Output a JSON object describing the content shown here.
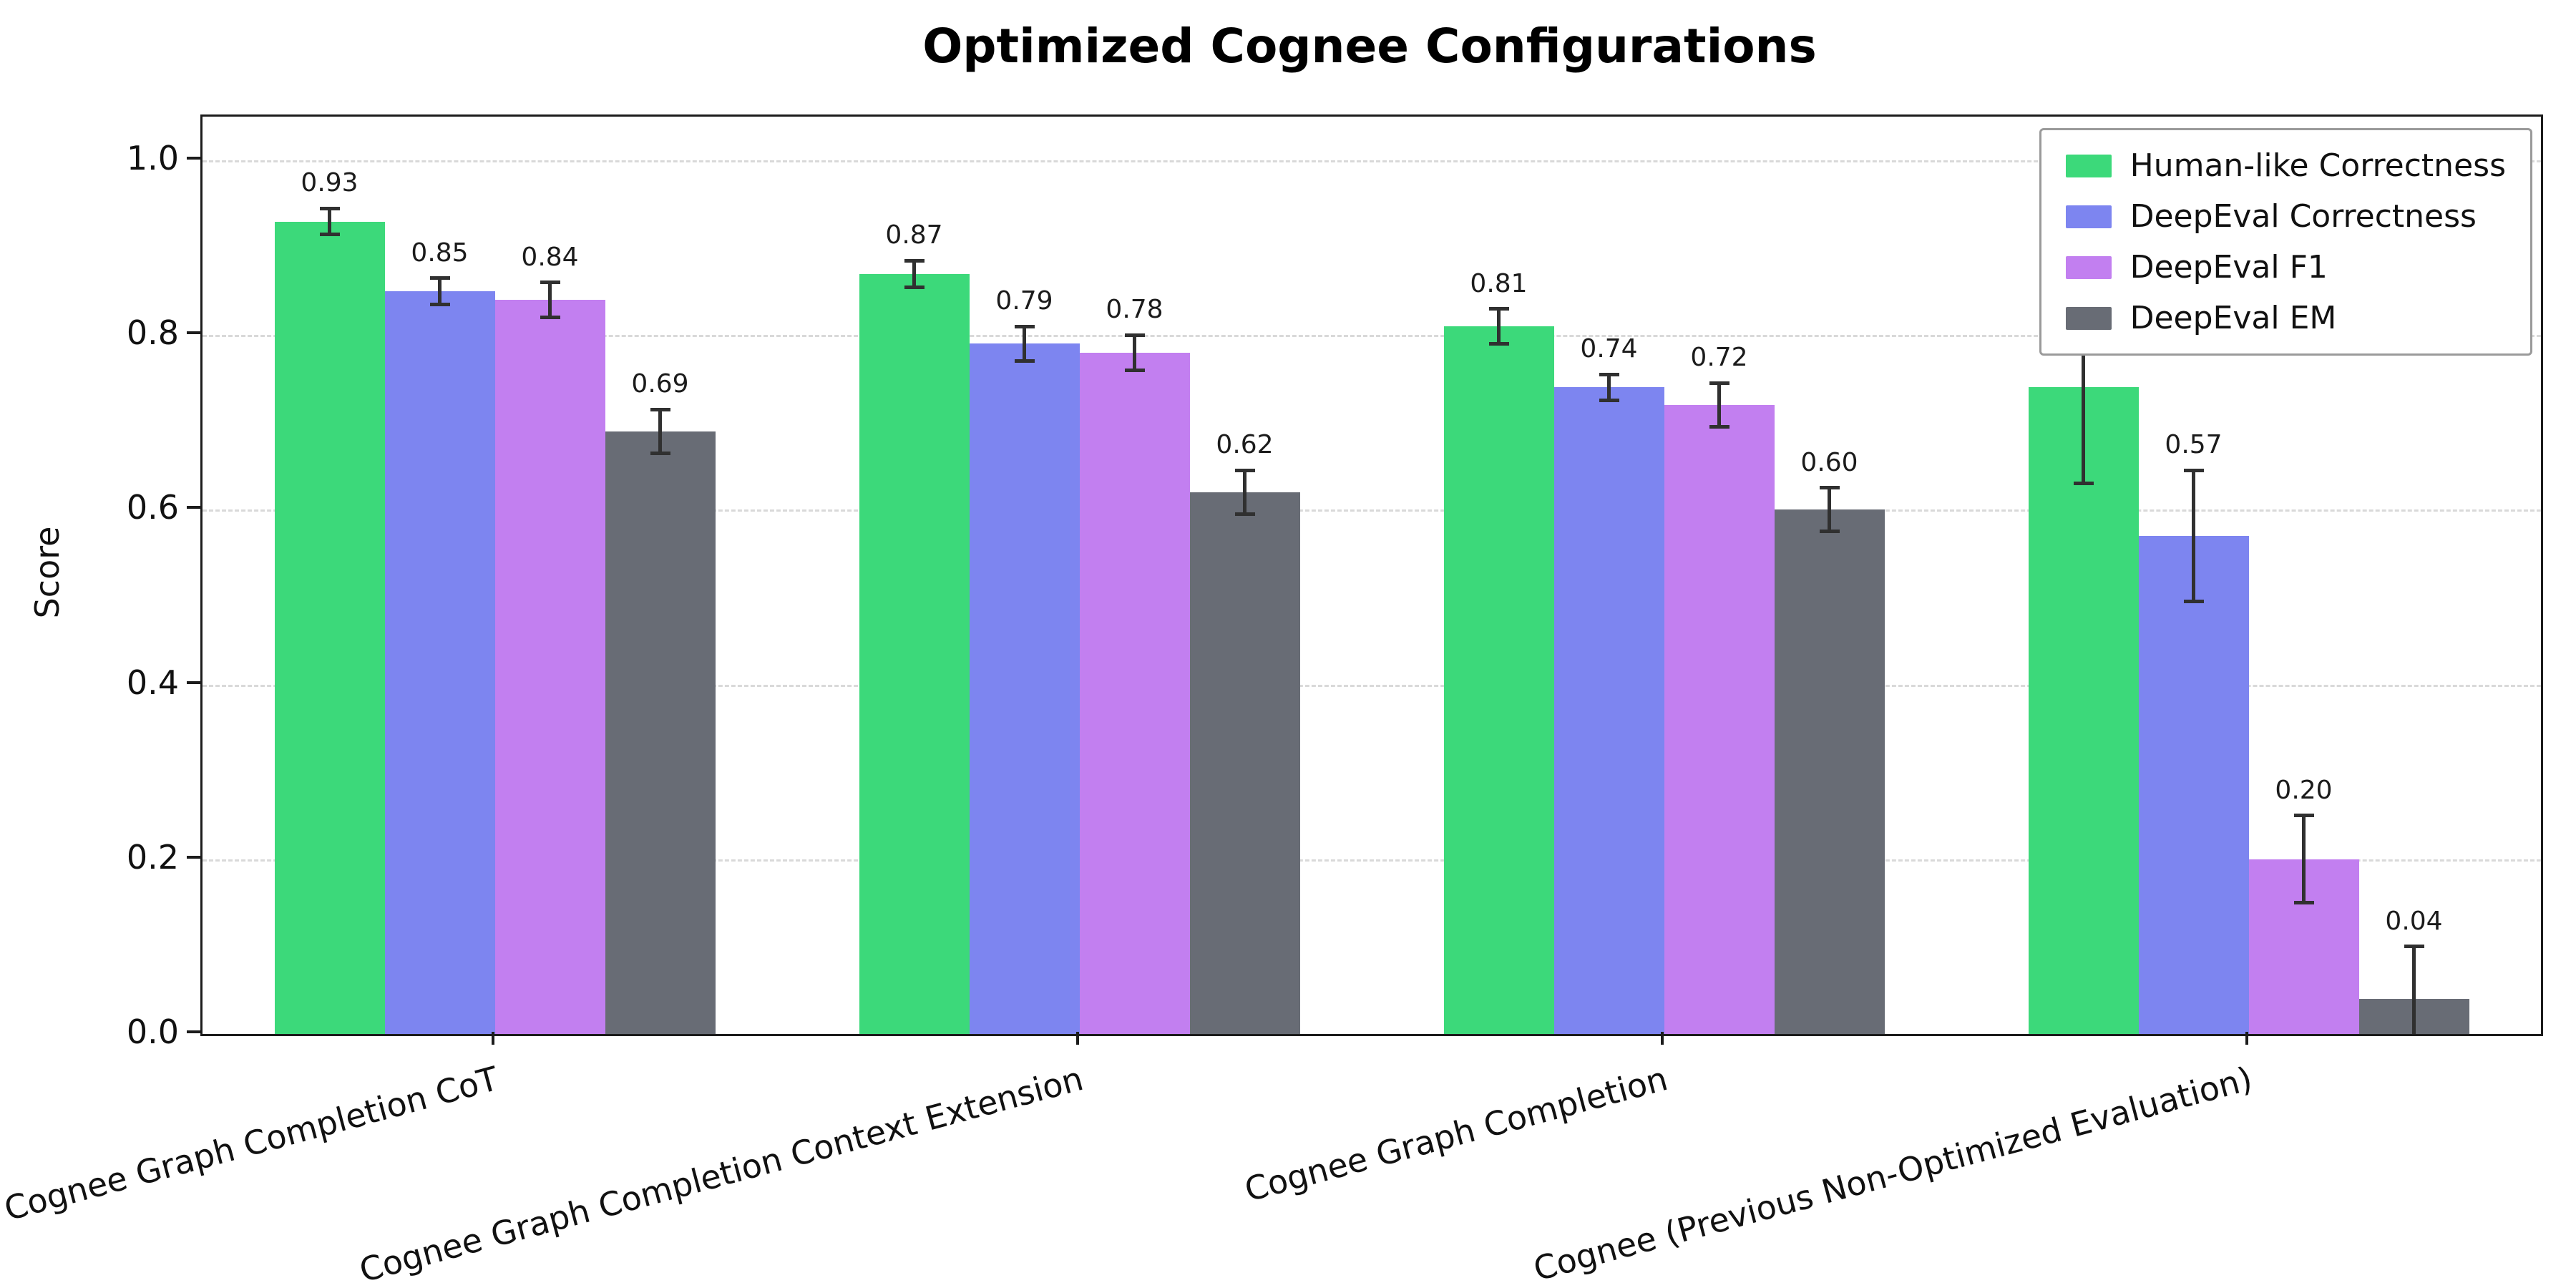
{
  "chart_data": {
    "type": "bar",
    "title": "Optimized Cognee Configurations",
    "ylabel": "Score",
    "xlabel": "",
    "ylim": [
      0,
      1.05
    ],
    "yticks": [
      0.0,
      0.2,
      0.4,
      0.6,
      0.8,
      1.0
    ],
    "grid": "dashed horizontal",
    "legend_position": "upper right",
    "error_bars": true,
    "categories": [
      "Cognee Graph Completion CoT",
      "Cognee Graph Completion Context Extension",
      "Cognee Graph Completion",
      "Cognee (Previous Non-Optimized Evaluation)"
    ],
    "series": [
      {
        "name": "Human-like Correctness",
        "color": "#3cd97a",
        "values": [
          0.93,
          0.87,
          0.81,
          0.74
        ],
        "errors": [
          0.015,
          0.015,
          0.02,
          0.11
        ]
      },
      {
        "name": "DeepEval Correctness",
        "color": "#7d85f0",
        "values": [
          0.85,
          0.79,
          0.74,
          0.57
        ],
        "errors": [
          0.015,
          0.02,
          0.015,
          0.075
        ]
      },
      {
        "name": "DeepEval F1",
        "color": "#c27ff0",
        "values": [
          0.84,
          0.78,
          0.72,
          0.2
        ],
        "errors": [
          0.02,
          0.02,
          0.025,
          0.05
        ]
      },
      {
        "name": "DeepEval EM",
        "color": "#686c75",
        "values": [
          0.69,
          0.62,
          0.6,
          0.04
        ],
        "errors": [
          0.025,
          0.025,
          0.025,
          0.06
        ]
      }
    ]
  }
}
